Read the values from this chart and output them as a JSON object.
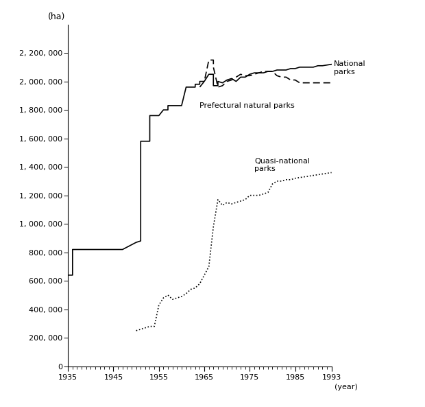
{
  "ylabel_text": "(ha)",
  "xlabel_text": "(year)",
  "ylim": [
    0,
    2400000
  ],
  "xlim": [
    1935,
    1993
  ],
  "yticks": [
    0,
    200000,
    400000,
    600000,
    800000,
    1000000,
    1200000,
    1400000,
    1600000,
    1800000,
    2000000,
    2200000
  ],
  "ytick_labels": [
    "0",
    "200, 000",
    "400, 000",
    "600, 000",
    "800, 000",
    "1, 000, 000",
    "1, 200, 000",
    "1, 400, 000",
    "1, 600, 000",
    "1, 800, 000",
    "2, 000, 000",
    "2, 200, 000"
  ],
  "xticks_major": [
    1935,
    1945,
    1955,
    1965,
    1975,
    1985,
    1993
  ],
  "national_parks_x": [
    1935,
    1936,
    1936,
    1946,
    1947,
    1950,
    1950,
    1951,
    1951,
    1952,
    1953,
    1953,
    1955,
    1956,
    1957,
    1957,
    1960,
    1961,
    1963,
    1963,
    1964,
    1964,
    1965,
    1966,
    1967,
    1967,
    1968,
    1968,
    1969,
    1970,
    1971,
    1972,
    1973,
    1974,
    1975,
    1976,
    1977,
    1978,
    1979,
    1980,
    1981,
    1982,
    1983,
    1984,
    1985,
    1986,
    1987,
    1988,
    1989,
    1990,
    1991,
    1992,
    1993
  ],
  "national_parks_y": [
    640000,
    640000,
    820000,
    820000,
    820000,
    870000,
    870000,
    880000,
    1580000,
    1580000,
    1580000,
    1760000,
    1760000,
    1800000,
    1800000,
    1830000,
    1830000,
    1960000,
    1960000,
    1980000,
    1980000,
    2000000,
    2000000,
    2050000,
    2050000,
    1970000,
    1970000,
    2000000,
    1990000,
    2010000,
    2020000,
    2000000,
    2030000,
    2030000,
    2050000,
    2060000,
    2060000,
    2060000,
    2070000,
    2070000,
    2080000,
    2080000,
    2080000,
    2090000,
    2090000,
    2100000,
    2100000,
    2100000,
    2100000,
    2110000,
    2110000,
    2115000,
    2120000
  ],
  "prefectural_parks_x": [
    1964,
    1965,
    1966,
    1967,
    1967,
    1968,
    1969,
    1970,
    1971,
    1972,
    1973,
    1974,
    1975,
    1976,
    1977,
    1978,
    1979,
    1980,
    1981,
    1982,
    1983,
    1984,
    1985,
    1986,
    1987,
    1988,
    1989,
    1990,
    1991,
    1992,
    1993
  ],
  "prefectural_parks_y": [
    1960000,
    2000000,
    2150000,
    2150000,
    2100000,
    1960000,
    1970000,
    2000000,
    2010000,
    2030000,
    2050000,
    2040000,
    2040000,
    2050000,
    2060000,
    2070000,
    2070000,
    2070000,
    2040000,
    2030000,
    2030000,
    2010000,
    2010000,
    1990000,
    1990000,
    1990000,
    1990000,
    1990000,
    1990000,
    1990000,
    1990000
  ],
  "quasi_national_parks_x": [
    1950,
    1951,
    1952,
    1953,
    1954,
    1955,
    1956,
    1957,
    1958,
    1959,
    1960,
    1961,
    1962,
    1963,
    1964,
    1965,
    1966,
    1967,
    1968,
    1969,
    1970,
    1971,
    1972,
    1973,
    1974,
    1975,
    1976,
    1977,
    1978,
    1979,
    1980,
    1981,
    1982,
    1983,
    1984,
    1985,
    1986,
    1987,
    1988,
    1989,
    1990,
    1991,
    1992,
    1993
  ],
  "quasi_national_parks_y": [
    250000,
    260000,
    270000,
    280000,
    280000,
    430000,
    480000,
    500000,
    470000,
    480000,
    490000,
    510000,
    540000,
    550000,
    580000,
    640000,
    700000,
    980000,
    1170000,
    1130000,
    1150000,
    1140000,
    1150000,
    1160000,
    1170000,
    1200000,
    1200000,
    1200000,
    1210000,
    1220000,
    1280000,
    1300000,
    1300000,
    1310000,
    1310000,
    1320000,
    1325000,
    1330000,
    1335000,
    1340000,
    1345000,
    1350000,
    1355000,
    1360000
  ],
  "line_color": "#000000",
  "background_color": "#ffffff",
  "annotation_national": "National\nparks",
  "annotation_prefectural": "Prefectural natural parks",
  "annotation_quasi": "Quasi-national\nparks"
}
